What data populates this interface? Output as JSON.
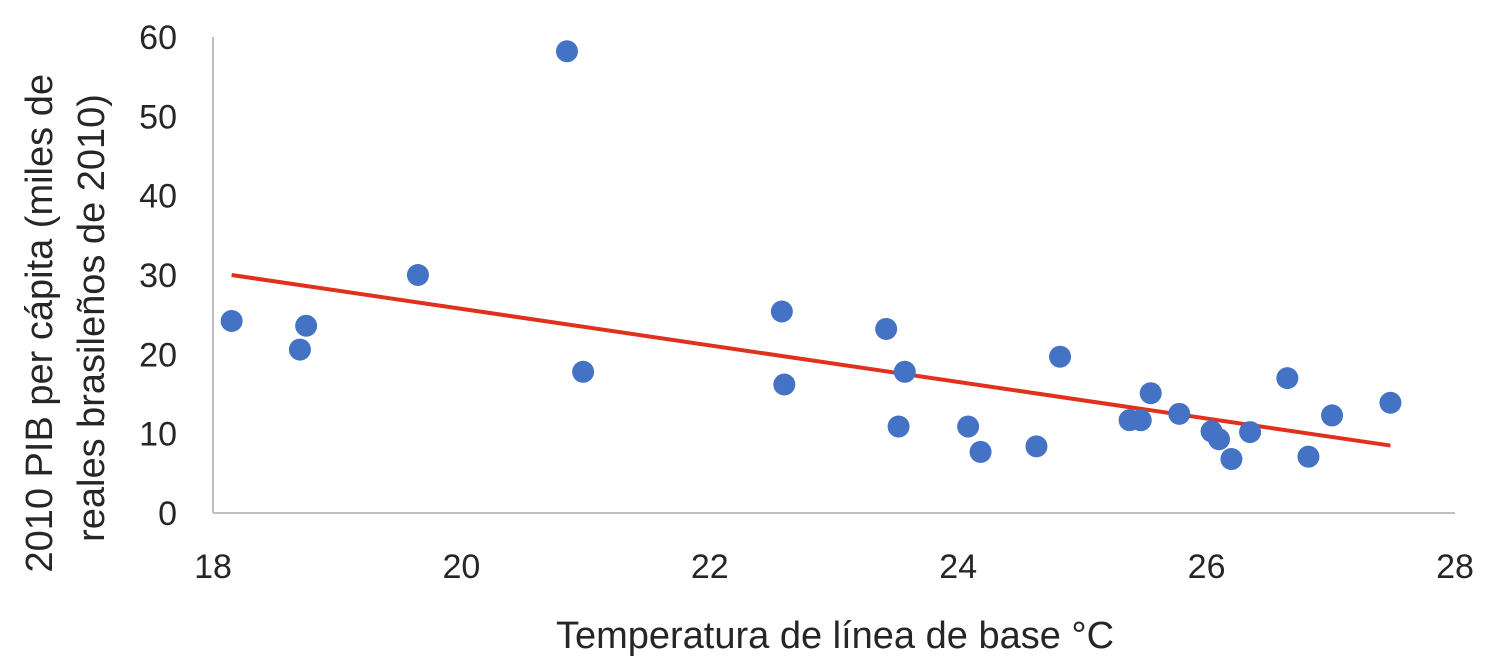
{
  "chart_data": {
    "type": "scatter",
    "title": "",
    "xlabel": "Temperatura de línea de base °C",
    "ylabel_lines": [
      "2010  PIB per cápita (miles de",
      "reales brasileños de 2010)"
    ],
    "xlim": [
      18,
      28
    ],
    "ylim": [
      0,
      60
    ],
    "x_ticks": [
      18,
      20,
      22,
      24,
      26,
      28
    ],
    "y_ticks": [
      0,
      10,
      20,
      30,
      40,
      50,
      60
    ],
    "grid": false,
    "legend": false,
    "colors": {
      "points": "#4472C4",
      "trendline": "#E0301E",
      "axis": "#BFBFBF",
      "text": "#262626"
    },
    "series": [
      {
        "points": [
          [
            18.15,
            24.2
          ],
          [
            18.7,
            20.6
          ],
          [
            18.75,
            23.6
          ],
          [
            19.65,
            30.0
          ],
          [
            20.85,
            58.2
          ],
          [
            20.98,
            17.8
          ],
          [
            22.58,
            25.4
          ],
          [
            22.6,
            16.2
          ],
          [
            23.42,
            23.2
          ],
          [
            23.52,
            10.9
          ],
          [
            23.57,
            17.8
          ],
          [
            24.08,
            10.9
          ],
          [
            24.18,
            7.7
          ],
          [
            24.63,
            8.4
          ],
          [
            24.82,
            19.7
          ],
          [
            25.38,
            11.7
          ],
          [
            25.47,
            11.7
          ],
          [
            25.55,
            15.1
          ],
          [
            25.78,
            12.5
          ],
          [
            26.04,
            10.3
          ],
          [
            26.1,
            9.3
          ],
          [
            26.2,
            6.8
          ],
          [
            26.35,
            10.2
          ],
          [
            26.65,
            17.0
          ],
          [
            26.82,
            7.1
          ],
          [
            27.01,
            12.3
          ],
          [
            27.48,
            13.9
          ]
        ]
      }
    ],
    "trendline": {
      "x": [
        18.15,
        27.48
      ],
      "y": [
        30.0,
        8.5
      ]
    }
  }
}
